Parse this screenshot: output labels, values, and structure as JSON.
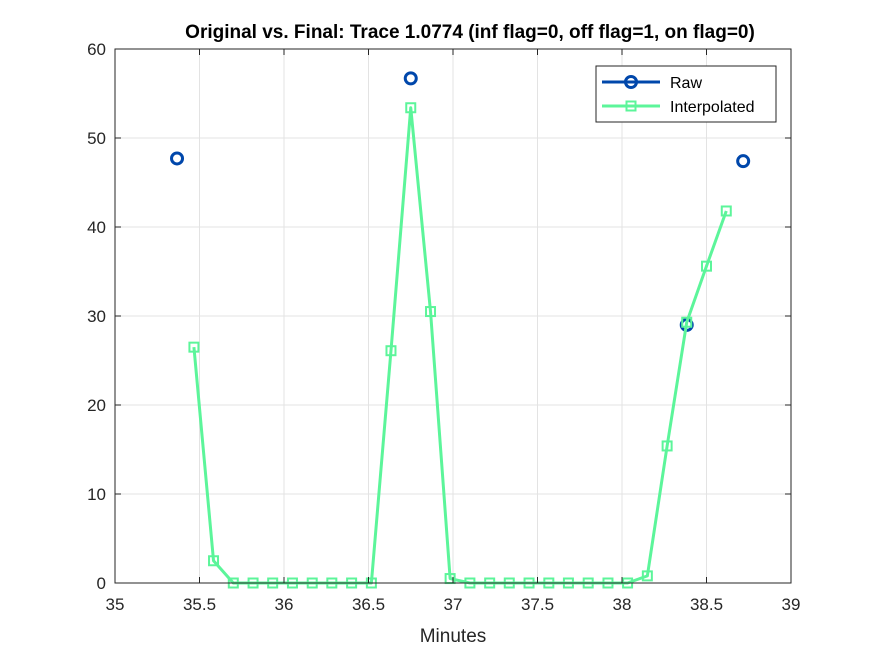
{
  "chart_data": {
    "type": "line",
    "title": "Original vs. Final: Trace 1.0774 (inf flag=0, off flag=1, on flag=0)",
    "xlabel": "Minutes",
    "ylabel": "",
    "xlim": [
      35,
      39
    ],
    "ylim": [
      0,
      60
    ],
    "xticks": [
      35,
      35.5,
      36,
      36.5,
      37,
      37.5,
      38,
      38.5,
      39
    ],
    "xtick_labels": [
      "35",
      "35.5",
      "36",
      "36.5",
      "37",
      "37.5",
      "38",
      "38.5",
      "39"
    ],
    "yticks": [
      0,
      10,
      20,
      30,
      40,
      50,
      60
    ],
    "ytick_labels": [
      "0",
      "10",
      "20",
      "30",
      "40",
      "50",
      "60"
    ],
    "grid": true,
    "legend_position": "top-right",
    "series": [
      {
        "name": "Raw",
        "color": "#0047ab",
        "marker": "circle",
        "line": false,
        "x": [
          35.367,
          36.75,
          38.383,
          38.717
        ],
        "y": [
          47.7,
          56.7,
          29.0,
          47.4
        ]
      },
      {
        "name": "Interpolated",
        "color": "#5cf59a",
        "marker": "square",
        "line": true,
        "x": [
          35.467,
          35.583,
          35.7,
          35.817,
          35.933,
          36.05,
          36.167,
          36.283,
          36.4,
          36.517,
          36.633,
          36.75,
          36.867,
          36.983,
          37.1,
          37.217,
          37.333,
          37.45,
          37.567,
          37.683,
          37.8,
          37.917,
          38.033,
          38.15,
          38.267,
          38.383,
          38.5,
          38.617
        ],
        "y": [
          26.5,
          2.5,
          0,
          0,
          0,
          0,
          0,
          0,
          0,
          0,
          26.1,
          53.4,
          30.5,
          0.5,
          0,
          0,
          0,
          0,
          0,
          0,
          0,
          0,
          0,
          0.8,
          15.4,
          29.3,
          35.6,
          41.8
        ]
      }
    ]
  }
}
